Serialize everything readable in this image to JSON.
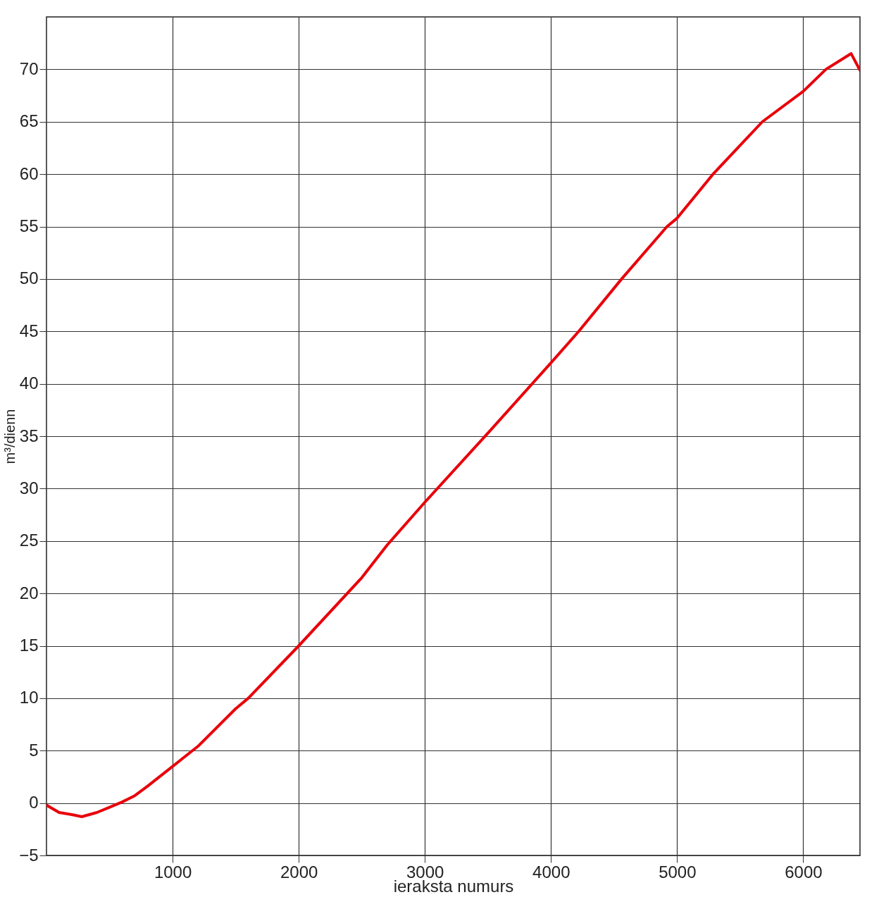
{
  "chart_data": {
    "type": "line",
    "xlabel": "ieraksta numurs",
    "ylabel": "m³/dienn",
    "xlim": [
      0,
      6450
    ],
    "xticks": [
      1000,
      2000,
      3000,
      4000,
      5000,
      6000
    ],
    "ylim": [
      -5,
      75
    ],
    "yticks": [
      -5,
      0,
      5,
      10,
      15,
      20,
      25,
      30,
      35,
      40,
      45,
      50,
      55,
      60,
      65,
      70
    ],
    "grid": true,
    "line_style": "solid",
    "marker": "none",
    "x": [
      0,
      100,
      200,
      280,
      400,
      500,
      600,
      700,
      800,
      1000,
      1200,
      1500,
      1600,
      2000,
      2500,
      2700,
      3000,
      3500,
      4000,
      4220,
      4560,
      4920,
      5000,
      5285,
      5676,
      6000,
      6180,
      6380,
      6450
    ],
    "series": [
      {
        "color": "#e8000b",
        "values": [
          -0.2,
          -0.9,
          -1.1,
          -1.3,
          -0.9,
          -0.4,
          0.1,
          0.7,
          1.6,
          3.5,
          5.4,
          9,
          10,
          15,
          21.5,
          24.6,
          28.7,
          35.3,
          42,
          45,
          50,
          55,
          55.8,
          60,
          65,
          67.9,
          70,
          71.5,
          69.9
        ]
      }
    ]
  }
}
